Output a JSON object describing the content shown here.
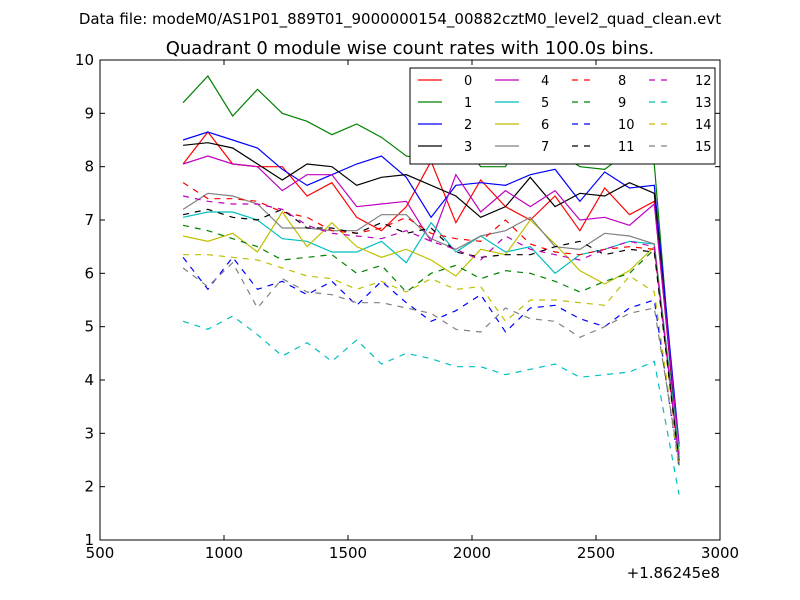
{
  "chart_data": {
    "type": "line",
    "suptitle": "Data file: modeM0/AS1P01_889T01_9000000154_00882cztM0_level2_quad_clean.evt",
    "title": "Quadrant 0 module wise count rates with 100.0s bins.",
    "xlabel": "",
    "ylabel": "",
    "x_offset_label": "+1.86245e8",
    "xlim": [
      500,
      3000
    ],
    "ylim": [
      1,
      10
    ],
    "xticks": [
      500,
      1000,
      1500,
      2000,
      2500,
      3000
    ],
    "yticks": [
      1,
      2,
      3,
      4,
      5,
      6,
      7,
      8,
      9,
      10
    ],
    "legend_position": "top-right",
    "legend_columns": 4,
    "x": [
      835,
      935,
      1035,
      1135,
      1235,
      1335,
      1435,
      1535,
      1635,
      1735,
      1835,
      1935,
      2035,
      2135,
      2235,
      2335,
      2435,
      2535,
      2635,
      2735,
      2835
    ],
    "series": [
      {
        "name": "0",
        "color": "#ff0000",
        "dash": "solid",
        "values": [
          8.05,
          8.65,
          8.05,
          8.0,
          8.0,
          7.45,
          7.7,
          7.05,
          6.8,
          7.25,
          8.1,
          6.95,
          7.75,
          7.25,
          7.0,
          7.45,
          6.8,
          7.6,
          7.1,
          7.35,
          2.6
        ]
      },
      {
        "name": "1",
        "color": "#008000",
        "dash": "solid",
        "values": [
          9.2,
          9.7,
          8.95,
          9.45,
          9.0,
          8.85,
          8.6,
          8.8,
          8.55,
          8.2,
          8.1,
          8.65,
          8.0,
          8.0,
          9.0,
          8.3,
          8.0,
          7.95,
          8.3,
          8.05,
          2.4
        ]
      },
      {
        "name": "2",
        "color": "#0000ff",
        "dash": "solid",
        "values": [
          8.5,
          8.65,
          8.5,
          8.35,
          7.95,
          7.65,
          7.85,
          8.05,
          8.2,
          7.8,
          7.05,
          7.65,
          7.7,
          7.65,
          7.85,
          7.95,
          7.35,
          7.9,
          7.6,
          7.65,
          2.8
        ]
      },
      {
        "name": "3",
        "color": "#000000",
        "dash": "solid",
        "values": [
          8.4,
          8.45,
          8.35,
          8.05,
          7.75,
          8.05,
          8.0,
          7.65,
          7.8,
          7.85,
          7.65,
          7.45,
          7.05,
          7.25,
          7.8,
          7.25,
          7.5,
          7.45,
          7.7,
          7.5,
          2.55
        ]
      },
      {
        "name": "4",
        "color": "#bf00bf",
        "dash": "solid",
        "values": [
          8.05,
          8.2,
          8.05,
          8.0,
          7.55,
          7.85,
          7.85,
          7.25,
          7.3,
          7.35,
          6.6,
          7.85,
          7.15,
          7.55,
          7.25,
          7.55,
          7.0,
          7.05,
          6.9,
          7.3,
          2.75
        ]
      },
      {
        "name": "5",
        "color": "#00bfbf",
        "dash": "solid",
        "values": [
          7.05,
          7.15,
          7.15,
          7.0,
          6.65,
          6.6,
          6.4,
          6.4,
          6.6,
          6.2,
          6.95,
          6.4,
          6.7,
          6.4,
          6.5,
          6.0,
          6.35,
          6.45,
          6.6,
          6.55,
          2.65
        ]
      },
      {
        "name": "6",
        "color": "#bfbf00",
        "dash": "solid",
        "values": [
          6.7,
          6.6,
          6.75,
          6.4,
          7.15,
          6.5,
          6.95,
          6.5,
          6.3,
          6.45,
          6.25,
          5.95,
          6.45,
          6.35,
          7.0,
          6.55,
          6.05,
          5.8,
          6.05,
          6.5,
          2.55
        ]
      },
      {
        "name": "7",
        "color": "#808080",
        "dash": "solid",
        "values": [
          7.2,
          7.5,
          7.45,
          7.3,
          6.85,
          6.85,
          6.8,
          6.8,
          7.1,
          7.1,
          6.65,
          6.45,
          6.7,
          6.8,
          7.05,
          6.5,
          6.45,
          6.75,
          6.7,
          6.55,
          2.5
        ]
      },
      {
        "name": "8",
        "color": "#ff0000",
        "dash": "dashed",
        "values": [
          7.7,
          7.4,
          7.4,
          7.35,
          7.15,
          7.05,
          6.8,
          6.75,
          6.85,
          7.05,
          6.75,
          6.65,
          6.6,
          7.0,
          6.55,
          6.4,
          6.35,
          6.45,
          6.5,
          6.45,
          2.4
        ]
      },
      {
        "name": "9",
        "color": "#008000",
        "dash": "dashed",
        "values": [
          6.9,
          6.8,
          6.65,
          6.5,
          6.25,
          6.3,
          6.35,
          6.0,
          6.15,
          5.65,
          6.0,
          6.15,
          5.9,
          6.05,
          6.0,
          5.85,
          5.65,
          5.85,
          6.0,
          6.45,
          2.5
        ]
      },
      {
        "name": "10",
        "color": "#0000ff",
        "dash": "dashed",
        "values": [
          6.3,
          5.7,
          6.3,
          5.7,
          5.85,
          5.6,
          5.85,
          5.4,
          5.85,
          5.45,
          5.1,
          5.3,
          5.6,
          4.9,
          5.35,
          5.4,
          5.15,
          5.0,
          5.35,
          5.5,
          2.35
        ]
      },
      {
        "name": "11",
        "color": "#000000",
        "dash": "dashed",
        "values": [
          7.1,
          7.2,
          7.05,
          7.0,
          7.2,
          6.85,
          6.85,
          6.75,
          6.95,
          6.75,
          6.85,
          6.4,
          6.3,
          6.35,
          6.35,
          6.5,
          6.6,
          6.35,
          6.45,
          6.4,
          2.45
        ]
      },
      {
        "name": "12",
        "color": "#bf00bf",
        "dash": "dashed",
        "values": [
          7.45,
          7.35,
          7.3,
          7.3,
          7.2,
          6.9,
          6.75,
          6.7,
          6.65,
          6.8,
          6.6,
          6.45,
          6.25,
          6.7,
          6.45,
          6.35,
          6.25,
          6.45,
          6.6,
          6.5,
          2.5
        ]
      },
      {
        "name": "13",
        "color": "#00bfbf",
        "dash": "dashed",
        "values": [
          5.1,
          4.95,
          5.2,
          4.85,
          4.45,
          4.7,
          4.35,
          4.75,
          4.3,
          4.5,
          4.4,
          4.25,
          4.25,
          4.1,
          4.2,
          4.3,
          4.05,
          4.1,
          4.15,
          4.35,
          1.85
        ]
      },
      {
        "name": "14",
        "color": "#bfbf00",
        "dash": "dashed",
        "values": [
          6.35,
          6.35,
          6.3,
          6.25,
          6.1,
          5.95,
          5.9,
          5.7,
          5.85,
          5.65,
          5.9,
          5.7,
          5.75,
          5.1,
          5.5,
          5.5,
          5.45,
          5.4,
          5.95,
          5.65,
          2.35
        ]
      },
      {
        "name": "15",
        "color": "#808080",
        "dash": "dashed",
        "values": [
          6.1,
          5.75,
          6.2,
          5.35,
          5.9,
          5.65,
          5.6,
          5.45,
          5.45,
          5.35,
          5.25,
          4.95,
          4.9,
          5.35,
          5.15,
          5.1,
          4.8,
          5.0,
          5.25,
          5.35,
          2.45
        ]
      }
    ]
  }
}
